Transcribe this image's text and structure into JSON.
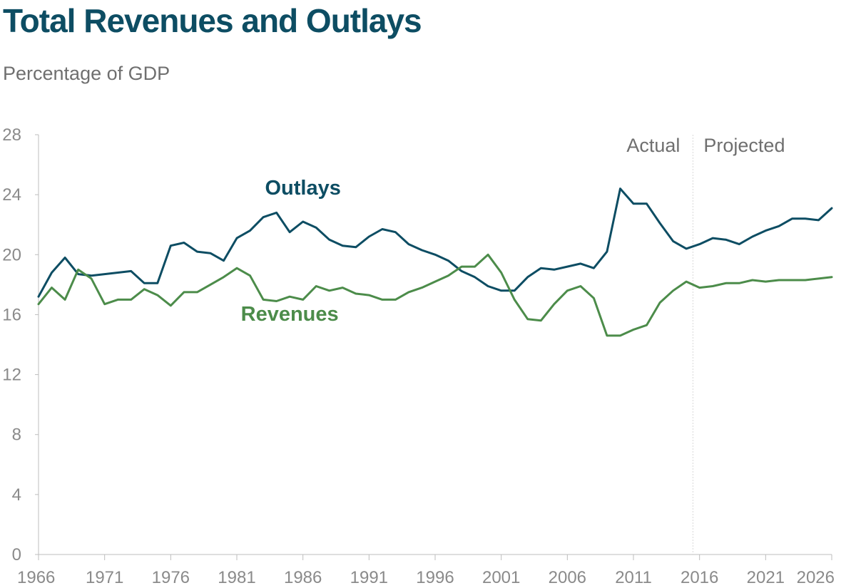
{
  "chart_data": {
    "type": "line",
    "title": "Total Revenues and Outlays",
    "ylabel": "Percentage of GDP",
    "xlabel": "",
    "xlim": [
      1966,
      2026
    ],
    "ylim": [
      0,
      28
    ],
    "y_ticks": [
      0,
      4,
      8,
      12,
      16,
      20,
      24,
      28
    ],
    "x_ticks": [
      1966,
      1971,
      1976,
      1981,
      1986,
      1991,
      1996,
      2001,
      2006,
      2011,
      2016,
      2021,
      2026
    ],
    "grid": false,
    "x": [
      1966,
      1967,
      1968,
      1969,
      1970,
      1971,
      1972,
      1973,
      1974,
      1975,
      1976,
      1977,
      1978,
      1979,
      1980,
      1981,
      1982,
      1983,
      1984,
      1985,
      1986,
      1987,
      1988,
      1989,
      1990,
      1991,
      1992,
      1993,
      1994,
      1995,
      1996,
      1997,
      1998,
      1999,
      2000,
      2001,
      2002,
      2003,
      2004,
      2005,
      2006,
      2007,
      2008,
      2009,
      2010,
      2011,
      2012,
      2013,
      2014,
      2015,
      2016,
      2017,
      2018,
      2019,
      2020,
      2021,
      2022,
      2023,
      2024,
      2025,
      2026
    ],
    "series": [
      {
        "name": "Outlays",
        "color": "#0d4d63",
        "values": [
          17.2,
          18.8,
          19.8,
          18.7,
          18.6,
          18.7,
          18.8,
          18.9,
          18.1,
          18.1,
          20.6,
          20.8,
          20.2,
          20.1,
          19.6,
          21.1,
          21.6,
          22.5,
          22.8,
          21.5,
          22.2,
          21.8,
          21.0,
          20.6,
          20.5,
          21.2,
          21.7,
          21.5,
          20.7,
          20.3,
          20.0,
          19.6,
          18.9,
          18.5,
          17.9,
          17.6,
          17.6,
          18.5,
          19.1,
          19.0,
          19.2,
          19.4,
          19.1,
          20.2,
          24.4,
          23.4,
          23.4,
          22.1,
          20.9,
          20.4,
          20.7,
          21.1,
          21.0,
          20.7,
          21.2,
          21.6,
          21.9,
          22.4,
          22.4,
          22.3,
          23.1
        ]
      },
      {
        "name": "Revenues",
        "color": "#4c8c4a",
        "values": [
          16.7,
          17.8,
          17.0,
          19.0,
          18.4,
          16.7,
          17.0,
          17.0,
          17.7,
          17.3,
          16.6,
          17.5,
          17.5,
          18.0,
          18.5,
          19.1,
          18.6,
          17.0,
          16.9,
          17.2,
          17.0,
          17.9,
          17.6,
          17.8,
          17.4,
          17.3,
          17.0,
          17.0,
          17.5,
          17.8,
          18.2,
          18.6,
          19.2,
          19.2,
          20.0,
          18.8,
          17.0,
          15.7,
          15.6,
          16.7,
          17.6,
          17.9,
          17.1,
          14.6,
          14.6,
          15.0,
          15.3,
          16.8,
          17.6,
          18.2,
          17.8,
          17.9,
          18.1,
          18.1,
          18.3,
          18.2,
          18.3,
          18.3,
          18.3,
          18.4,
          18.5
        ]
      }
    ],
    "divider_year": 2015.5,
    "period_labels": {
      "actual": "Actual",
      "projected": "Projected"
    },
    "annotations": [
      {
        "series": "Outlays",
        "text": "Outlays",
        "x": 1986,
        "y": 24.0
      },
      {
        "series": "Revenues",
        "text": "Revenues",
        "x": 1985,
        "y": 15.6
      }
    ]
  }
}
